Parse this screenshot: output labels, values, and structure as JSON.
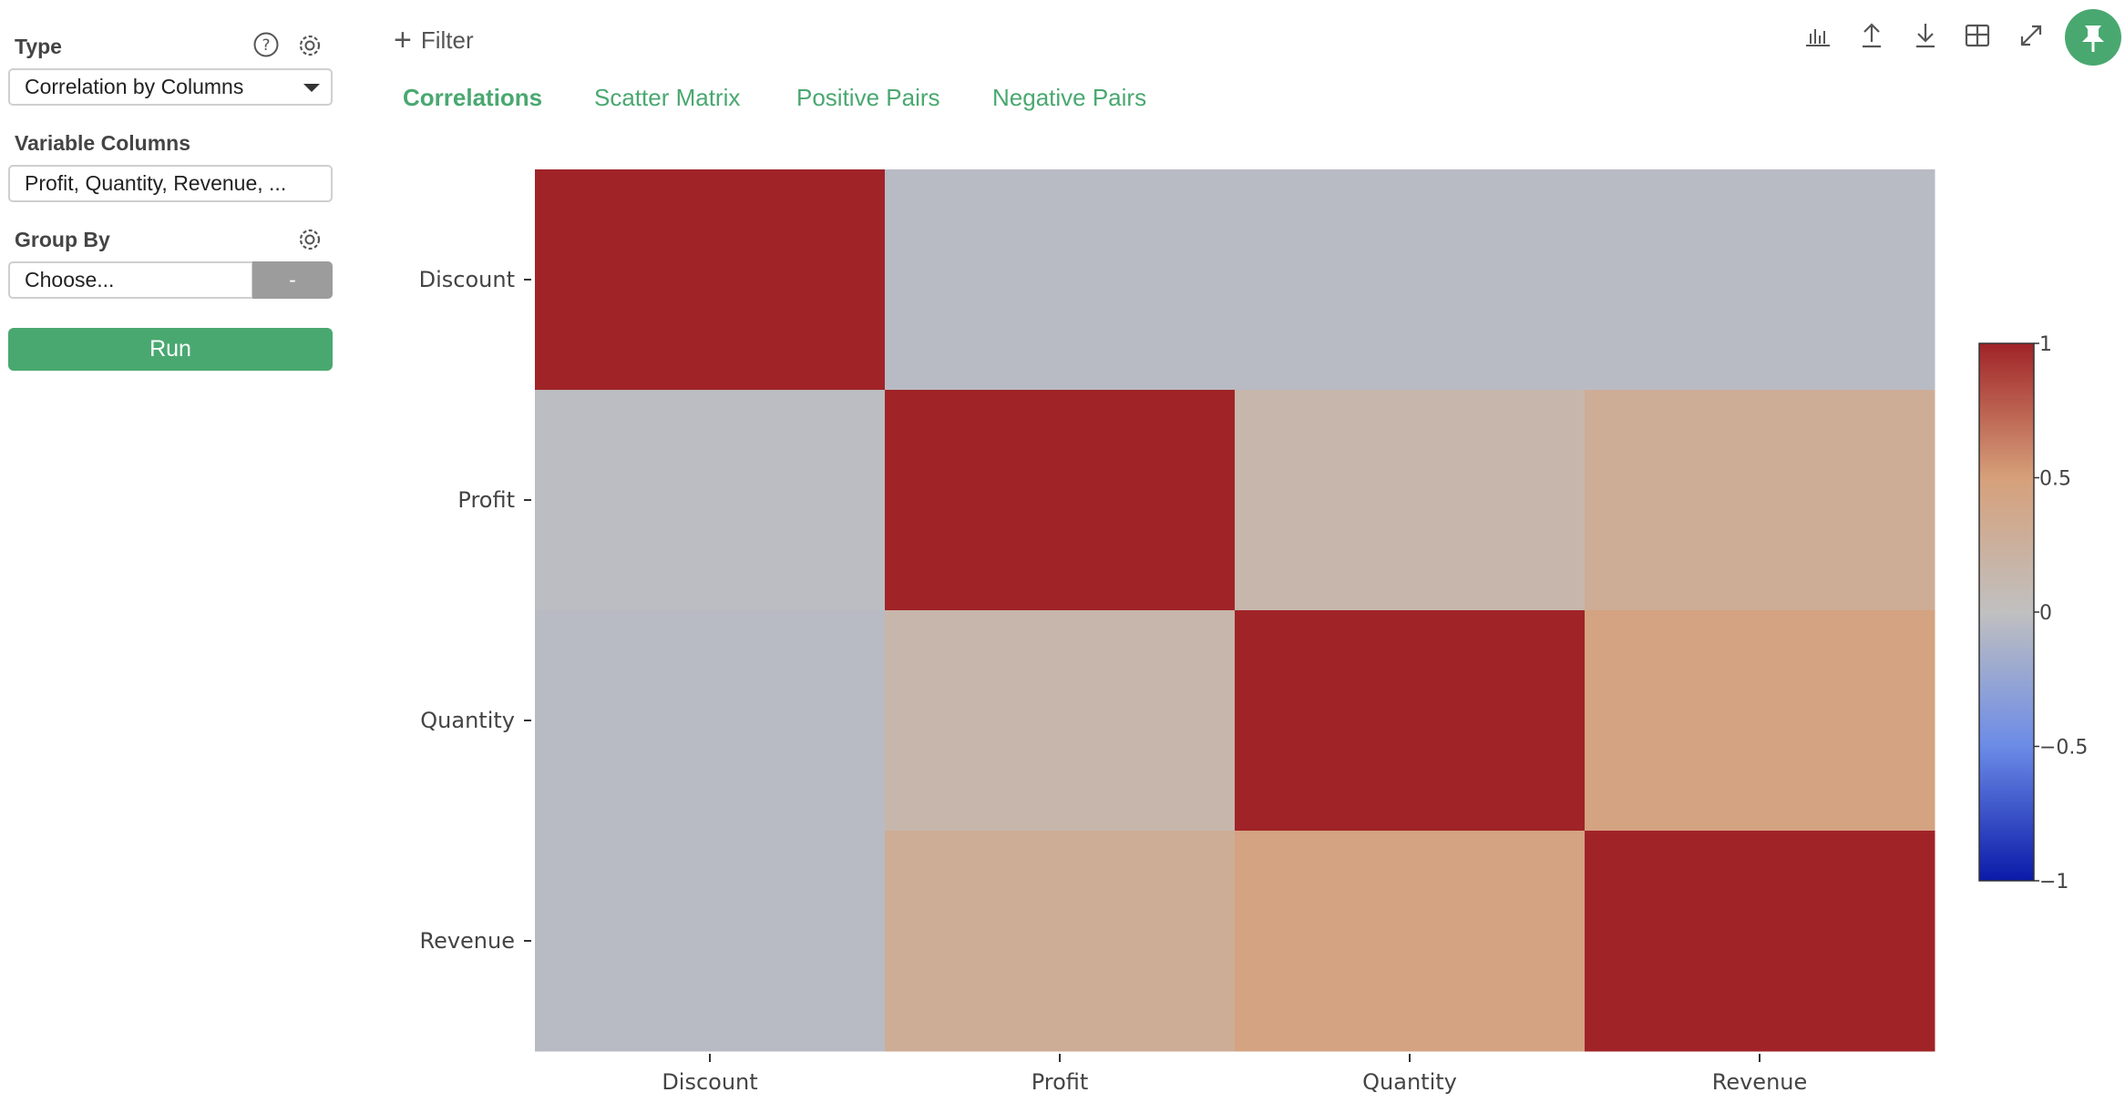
{
  "sidebar": {
    "type_label": "Type",
    "type_value": "Correlation by Columns",
    "variable_columns_label": "Variable Columns",
    "variable_columns_value": "Profit, Quantity, Revenue, ...",
    "group_by_label": "Group By",
    "group_by_placeholder": "Choose...",
    "group_by_dash": "-",
    "run_label": "Run"
  },
  "header": {
    "filter_label": "Filter",
    "tabs": [
      {
        "label": "Correlations",
        "active": true
      },
      {
        "label": "Scatter Matrix",
        "active": false
      },
      {
        "label": "Positive Pairs",
        "active": false
      },
      {
        "label": "Negative Pairs",
        "active": false
      }
    ],
    "toolbar_icons": [
      "bar-chart-icon",
      "upload-icon",
      "download-icon",
      "table-grid-icon",
      "expand-icon",
      "pin-icon"
    ]
  },
  "colors": {
    "accent": "#49a870",
    "button_disabled": "#9c9c9c"
  },
  "chart_data": {
    "type": "heatmap",
    "x_categories": [
      "Discount",
      "Profit",
      "Quantity",
      "Revenue"
    ],
    "y_categories": [
      "Discount",
      "Profit",
      "Quantity",
      "Revenue"
    ],
    "values": [
      [
        1.0,
        -0.05,
        -0.05,
        -0.05
      ],
      [
        -0.03,
        1.0,
        0.15,
        0.3
      ],
      [
        -0.05,
        0.15,
        1.0,
        0.45
      ],
      [
        -0.05,
        0.3,
        0.45,
        1.0
      ]
    ],
    "colorscale": [
      "#0a1aa8",
      "#6b8be6",
      "#c0c0c0",
      "#d6a07a",
      "#a02327"
    ],
    "colorbar_ticks": [
      "1",
      "0.5",
      "0",
      "−0.5",
      "−1"
    ],
    "colorbar_range": [
      -1,
      1
    ]
  }
}
